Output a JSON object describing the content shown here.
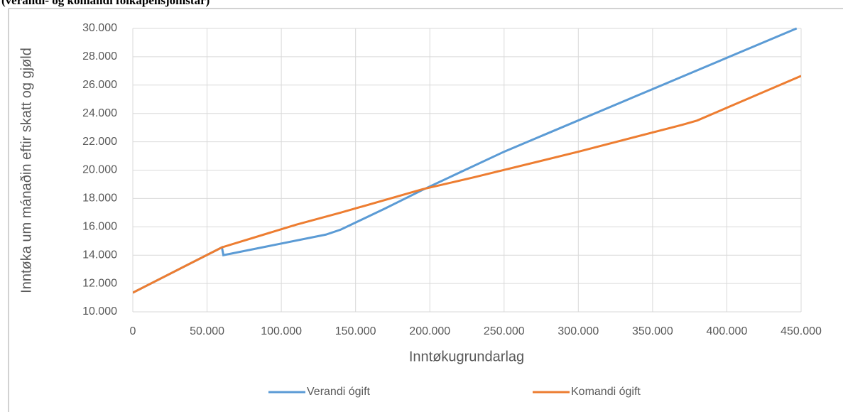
{
  "chart_data": {
    "type": "line",
    "title": "(verandi- og komandi fólkapensjónistar)",
    "x_label": "Inntøkugrundarlag",
    "y_label": "Inntøka um mánaðin eftir skatt og gjøld",
    "xlim": [
      0,
      450000
    ],
    "xticks": [
      0,
      {
        "value": 50000,
        "label": "50.000"
      },
      {
        "value": 100000,
        "label": "100.000"
      },
      {
        "value": 150000,
        "label": "150.000"
      },
      {
        "value": 200000,
        "label": "200.000"
      },
      {
        "value": 250000,
        "label": "250.000"
      },
      {
        "value": 300000,
        "label": "300.000"
      },
      {
        "value": 350000,
        "label": "350.000"
      },
      {
        "value": 400000,
        "label": "400.000"
      },
      {
        "value": 450000,
        "label": "450.000"
      }
    ],
    "ylim": [
      10000,
      30000
    ],
    "yticks": [
      {
        "value": 10000,
        "label": "10.000"
      },
      {
        "value": 12000,
        "label": "12.000"
      },
      {
        "value": 14000,
        "label": "14.000"
      },
      {
        "value": 16000,
        "label": "16.000"
      },
      {
        "value": 18000,
        "label": "18.000"
      },
      {
        "value": 20000,
        "label": "20.000"
      },
      {
        "value": 22000,
        "label": "22.000"
      },
      {
        "value": 24000,
        "label": "24.000"
      },
      {
        "value": 26000,
        "label": "26.000"
      },
      {
        "value": 28000,
        "label": "28.000"
      },
      {
        "value": 30000,
        "label": "30.000"
      }
    ],
    "grid": true,
    "legend": "bottom",
    "series": [
      {
        "name": "Verandi ógift",
        "color": "#5b9bd5",
        "x": [
          0,
          60000,
          61000,
          130000,
          140000,
          170000,
          195000,
          250000,
          447000
        ],
        "values": [
          11350,
          14550,
          14000,
          15450,
          15800,
          17300,
          18600,
          21300,
          30000
        ]
      },
      {
        "name": "Komandi ógift",
        "color": "#ed7d31",
        "x": [
          0,
          60000,
          110000,
          140000,
          195000,
          230000,
          300000,
          370000,
          380000,
          450000
        ],
        "values": [
          11350,
          14550,
          16150,
          17000,
          18650,
          19500,
          21300,
          23200,
          23500,
          26650
        ]
      }
    ]
  }
}
